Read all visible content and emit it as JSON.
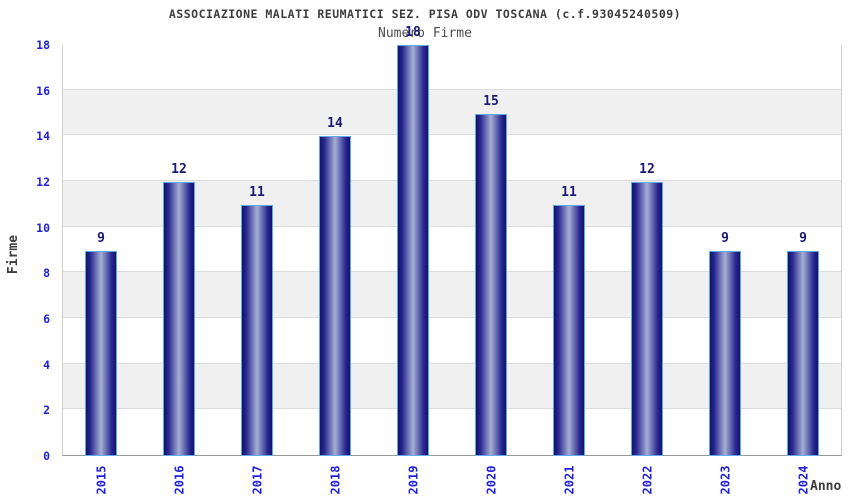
{
  "header": {
    "title": "ASSOCIAZIONE MALATI REUMATICI SEZ. PISA ODV TOSCANA (c.f.93045240509)",
    "subtitle": "Numero Firme"
  },
  "chart_data": {
    "type": "bar",
    "title": "ASSOCIAZIONE MALATI REUMATICI SEZ. PISA ODV TOSCANA (c.f.93045240509)",
    "subtitle": "Numero Firme",
    "xlabel": "Anno",
    "ylabel": "Firme",
    "categories": [
      "2015",
      "2016",
      "2017",
      "2018",
      "2019",
      "2020",
      "2021",
      "2022",
      "2023",
      "2024"
    ],
    "values": [
      9,
      12,
      11,
      14,
      18,
      15,
      11,
      12,
      9,
      9
    ],
    "ylim": [
      0,
      18
    ],
    "ytick_step": 2,
    "yticks": [
      0,
      2,
      4,
      6,
      8,
      10,
      12,
      14,
      16,
      18
    ],
    "legend": "none",
    "grid": "alternating-horizontal-bands",
    "colors": {
      "bar_edge_dark": "#13136b",
      "bar_mid_light": "#a7aed3",
      "bar_border": "#5ea9ea",
      "tick_label": "#2121d8",
      "value_label": "#191973",
      "band_gray": "#f0f0f0",
      "band_white": "#ffffff",
      "plot_border": "#d0d0d0",
      "axis_line": "#999999",
      "title_text": "#3d3d3d"
    }
  }
}
